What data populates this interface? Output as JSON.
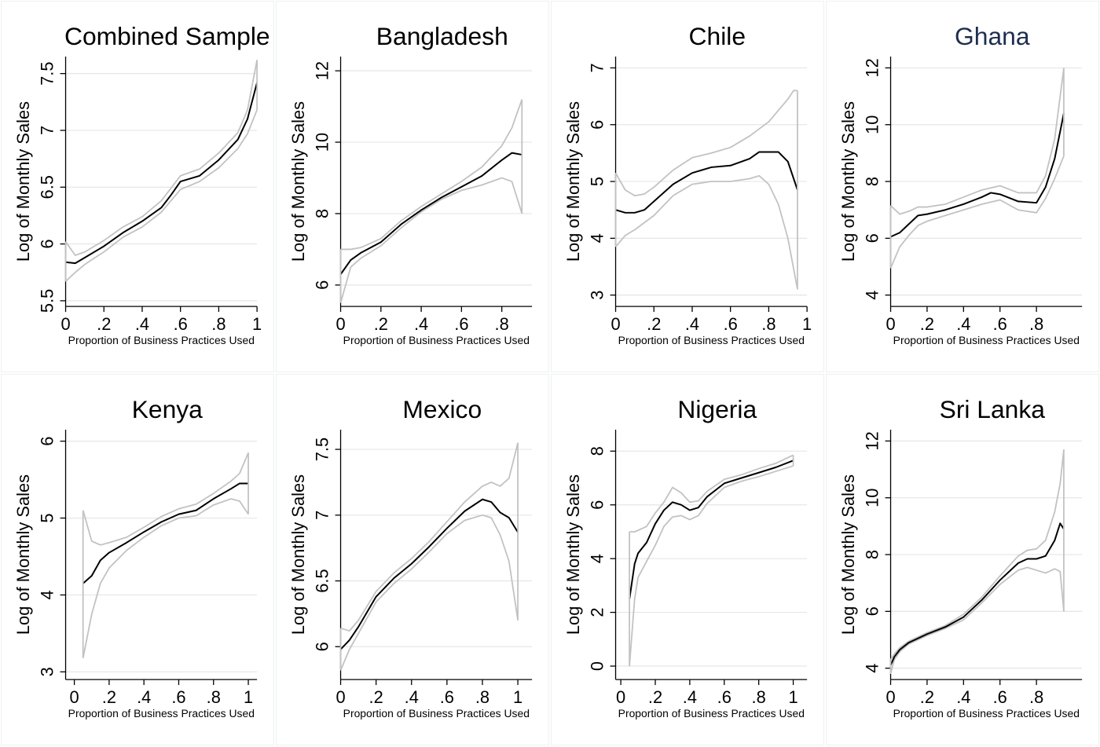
{
  "chart_data": [
    {
      "type": "line",
      "title": "Combined Sample",
      "xlabel": "Proportion of Business Practices Used",
      "ylabel": "Log of Monthly Sales",
      "xlim": [
        0,
        1
      ],
      "ylim": [
        5.45,
        7.65
      ],
      "xticks": [
        0,
        0.2,
        0.4,
        0.6,
        0.8,
        1
      ],
      "xtick_labels": [
        "0",
        ".2",
        ".4",
        ".6",
        ".8",
        "1"
      ],
      "yticks": [
        5.5,
        6,
        6.5,
        7,
        7.5
      ],
      "ytick_labels": [
        "5.5",
        "6",
        "6.5",
        "7",
        "7.5"
      ],
      "grid": true,
      "series": [
        {
          "role": "fit",
          "x": [
            0,
            0.05,
            0.1,
            0.2,
            0.3,
            0.4,
            0.5,
            0.55,
            0.6,
            0.7,
            0.8,
            0.9,
            0.95,
            1.0
          ],
          "y": [
            5.84,
            5.83,
            5.88,
            5.98,
            6.1,
            6.2,
            6.32,
            6.43,
            6.55,
            6.6,
            6.74,
            6.92,
            7.1,
            7.42
          ]
        },
        {
          "role": "ci-upper",
          "x": [
            0,
            0.05,
            0.1,
            0.2,
            0.3,
            0.4,
            0.5,
            0.6,
            0.7,
            0.8,
            0.9,
            0.95,
            1.0
          ],
          "y": [
            6.02,
            5.9,
            5.93,
            6.03,
            6.15,
            6.24,
            6.38,
            6.6,
            6.66,
            6.8,
            6.98,
            7.18,
            7.62
          ]
        },
        {
          "role": "ci-lower",
          "x": [
            0,
            0.05,
            0.1,
            0.2,
            0.3,
            0.4,
            0.5,
            0.6,
            0.7,
            0.8,
            0.9,
            0.95,
            1.0
          ],
          "y": [
            5.67,
            5.75,
            5.82,
            5.93,
            6.06,
            6.15,
            6.28,
            6.48,
            6.55,
            6.67,
            6.84,
            6.97,
            7.18
          ]
        }
      ]
    },
    {
      "type": "line",
      "title": "Bangladesh",
      "xlabel": "Proportion of Business Practices Used",
      "ylabel": "Log of Monthly Sales",
      "xlim": [
        0,
        0.95
      ],
      "ylim": [
        5.4,
        12.4
      ],
      "xticks": [
        0,
        0.2,
        0.4,
        0.6,
        0.8
      ],
      "xtick_labels": [
        "0",
        ".2",
        ".4",
        ".6",
        ".8"
      ],
      "yticks": [
        6,
        8,
        10,
        12
      ],
      "ytick_labels": [
        "6",
        "8",
        "10",
        "12"
      ],
      "grid": true,
      "series": [
        {
          "role": "fit",
          "x": [
            0,
            0.05,
            0.1,
            0.2,
            0.3,
            0.4,
            0.5,
            0.6,
            0.7,
            0.8,
            0.85,
            0.9
          ],
          "y": [
            6.3,
            6.7,
            6.9,
            7.2,
            7.7,
            8.1,
            8.45,
            8.75,
            9.05,
            9.5,
            9.7,
            9.65
          ]
        },
        {
          "role": "ci-upper",
          "x": [
            0,
            0.05,
            0.1,
            0.2,
            0.3,
            0.4,
            0.5,
            0.6,
            0.7,
            0.8,
            0.85,
            0.9
          ],
          "y": [
            7.0,
            7.0,
            7.05,
            7.3,
            7.8,
            8.2,
            8.55,
            8.9,
            9.3,
            9.9,
            10.4,
            11.2
          ]
        },
        {
          "role": "ci-lower",
          "x": [
            0,
            0.05,
            0.1,
            0.2,
            0.3,
            0.4,
            0.5,
            0.6,
            0.7,
            0.8,
            0.85,
            0.9
          ],
          "y": [
            5.5,
            6.5,
            6.75,
            7.1,
            7.6,
            8.05,
            8.4,
            8.65,
            8.8,
            9.0,
            8.9,
            8.0
          ]
        }
      ]
    },
    {
      "type": "line",
      "title": "Chile",
      "xlabel": "Proportion of Business Practices Used",
      "ylabel": "Log of Monthly Sales",
      "xlim": [
        0,
        1
      ],
      "ylim": [
        2.8,
        7.2
      ],
      "xticks": [
        0,
        0.2,
        0.4,
        0.6,
        0.8,
        1
      ],
      "xtick_labels": [
        "0",
        ".2",
        ".4",
        ".6",
        ".8",
        "1"
      ],
      "yticks": [
        3,
        4,
        5,
        6,
        7
      ],
      "ytick_labels": [
        "3",
        "4",
        "5",
        "6",
        "7"
      ],
      "grid": true,
      "series": [
        {
          "role": "fit",
          "x": [
            0,
            0.05,
            0.1,
            0.15,
            0.2,
            0.3,
            0.4,
            0.5,
            0.6,
            0.7,
            0.75,
            0.85,
            0.9,
            0.95
          ],
          "y": [
            4.5,
            4.45,
            4.45,
            4.5,
            4.65,
            4.95,
            5.15,
            5.25,
            5.28,
            5.4,
            5.52,
            5.52,
            5.35,
            4.85
          ]
        },
        {
          "role": "ci-upper",
          "x": [
            0,
            0.05,
            0.1,
            0.15,
            0.2,
            0.3,
            0.4,
            0.5,
            0.6,
            0.7,
            0.8,
            0.9,
            0.93,
            0.95
          ],
          "y": [
            5.15,
            4.85,
            4.75,
            4.78,
            4.9,
            5.2,
            5.42,
            5.5,
            5.6,
            5.8,
            6.05,
            6.45,
            6.6,
            6.6
          ]
        },
        {
          "role": "ci-lower",
          "x": [
            0,
            0.05,
            0.1,
            0.2,
            0.3,
            0.4,
            0.5,
            0.6,
            0.7,
            0.75,
            0.8,
            0.85,
            0.9,
            0.95
          ],
          "y": [
            3.85,
            4.05,
            4.15,
            4.4,
            4.75,
            4.95,
            5.0,
            5.0,
            5.05,
            5.1,
            4.95,
            4.6,
            4.0,
            3.1
          ]
        }
      ]
    },
    {
      "type": "line",
      "title": "Ghana",
      "xlabel": "Proportion of Business Practices Used",
      "ylabel": "Log of Monthly Sales",
      "xlim": [
        0,
        1.05
      ],
      "ylim": [
        3.6,
        12.4
      ],
      "xticks": [
        0,
        0.2,
        0.4,
        0.6,
        0.8
      ],
      "xtick_labels": [
        "0",
        ".2",
        ".4",
        ".6",
        ".8"
      ],
      "yticks": [
        4,
        6,
        8,
        10,
        12
      ],
      "ytick_labels": [
        "4",
        "6",
        "8",
        "10",
        "12"
      ],
      "grid": true,
      "series": [
        {
          "role": "fit",
          "x": [
            0,
            0.05,
            0.1,
            0.15,
            0.2,
            0.3,
            0.4,
            0.5,
            0.55,
            0.6,
            0.7,
            0.8,
            0.85,
            0.9,
            0.95
          ],
          "y": [
            6.05,
            6.2,
            6.5,
            6.8,
            6.85,
            7.0,
            7.2,
            7.45,
            7.6,
            7.55,
            7.3,
            7.25,
            7.8,
            8.8,
            10.4
          ]
        },
        {
          "role": "ci-upper",
          "x": [
            0,
            0.05,
            0.1,
            0.15,
            0.2,
            0.3,
            0.4,
            0.5,
            0.6,
            0.7,
            0.8,
            0.85,
            0.9,
            0.95
          ],
          "y": [
            7.15,
            6.85,
            6.95,
            7.1,
            7.1,
            7.2,
            7.45,
            7.7,
            7.85,
            7.6,
            7.6,
            8.2,
            9.5,
            12.0
          ]
        },
        {
          "role": "ci-lower",
          "x": [
            0,
            0.05,
            0.1,
            0.15,
            0.2,
            0.3,
            0.4,
            0.5,
            0.6,
            0.7,
            0.8,
            0.85,
            0.9,
            0.95
          ],
          "y": [
            4.95,
            5.7,
            6.1,
            6.45,
            6.6,
            6.8,
            7.0,
            7.2,
            7.35,
            7.0,
            6.9,
            7.4,
            8.1,
            8.9
          ]
        }
      ]
    },
    {
      "type": "line",
      "title": "Kenya",
      "xlabel": "Proportion of Business Practices Used",
      "ylabel": "Log of Monthly Sales",
      "xlim": [
        -0.05,
        1.05
      ],
      "ylim": [
        2.9,
        6.15
      ],
      "xticks": [
        0,
        0.2,
        0.4,
        0.6,
        0.8,
        1
      ],
      "xtick_labels": [
        "0",
        ".2",
        ".4",
        ".6",
        ".8",
        "1"
      ],
      "yticks": [
        3,
        4,
        5,
        6
      ],
      "ytick_labels": [
        "3",
        "4",
        "5",
        "6"
      ],
      "grid": true,
      "series": [
        {
          "role": "fit",
          "x": [
            0.05,
            0.1,
            0.15,
            0.2,
            0.3,
            0.4,
            0.5,
            0.6,
            0.7,
            0.8,
            0.9,
            0.95,
            1.0
          ],
          "y": [
            4.15,
            4.25,
            4.45,
            4.55,
            4.68,
            4.82,
            4.95,
            5.05,
            5.1,
            5.25,
            5.38,
            5.45,
            5.45
          ]
        },
        {
          "role": "ci-upper",
          "x": [
            0.05,
            0.1,
            0.15,
            0.2,
            0.3,
            0.4,
            0.5,
            0.6,
            0.7,
            0.8,
            0.9,
            0.95,
            1.0
          ],
          "y": [
            5.1,
            4.7,
            4.65,
            4.68,
            4.75,
            4.88,
            5.02,
            5.12,
            5.18,
            5.32,
            5.48,
            5.58,
            5.85
          ]
        },
        {
          "role": "ci-lower",
          "x": [
            0.05,
            0.1,
            0.15,
            0.2,
            0.3,
            0.4,
            0.5,
            0.6,
            0.7,
            0.8,
            0.9,
            0.95,
            1.0
          ],
          "y": [
            3.18,
            3.75,
            4.15,
            4.35,
            4.58,
            4.75,
            4.9,
            5.0,
            5.03,
            5.17,
            5.25,
            5.22,
            5.05
          ]
        }
      ]
    },
    {
      "type": "line",
      "title": "Mexico",
      "xlabel": "Proportion of Business Practices Used",
      "ylabel": "Log of Monthly Sales",
      "xlim": [
        0,
        1.08
      ],
      "ylim": [
        5.75,
        7.65
      ],
      "xticks": [
        0,
        0.2,
        0.4,
        0.6,
        0.8,
        1
      ],
      "xtick_labels": [
        "0",
        ".2",
        ".4",
        ".6",
        ".8",
        "1"
      ],
      "yticks": [
        6,
        6.5,
        7,
        7.5
      ],
      "ytick_labels": [
        "6",
        "6.5",
        "7",
        "7.5"
      ],
      "grid": true,
      "series": [
        {
          "role": "fit",
          "x": [
            0,
            0.05,
            0.1,
            0.2,
            0.3,
            0.4,
            0.5,
            0.6,
            0.7,
            0.8,
            0.85,
            0.9,
            0.95,
            1.0
          ],
          "y": [
            5.98,
            6.05,
            6.15,
            6.38,
            6.52,
            6.63,
            6.76,
            6.9,
            7.03,
            7.12,
            7.1,
            7.02,
            6.98,
            6.87
          ]
        },
        {
          "role": "ci-upper",
          "x": [
            0,
            0.05,
            0.1,
            0.2,
            0.3,
            0.4,
            0.5,
            0.6,
            0.7,
            0.8,
            0.85,
            0.9,
            0.95,
            1.0
          ],
          "y": [
            6.14,
            6.12,
            6.2,
            6.42,
            6.56,
            6.67,
            6.8,
            6.95,
            7.1,
            7.22,
            7.25,
            7.22,
            7.28,
            7.55
          ]
        },
        {
          "role": "ci-lower",
          "x": [
            0,
            0.05,
            0.1,
            0.2,
            0.3,
            0.4,
            0.5,
            0.6,
            0.7,
            0.8,
            0.85,
            0.9,
            0.95,
            1.0
          ],
          "y": [
            5.82,
            5.98,
            6.1,
            6.34,
            6.48,
            6.59,
            6.72,
            6.86,
            6.96,
            7.0,
            6.98,
            6.85,
            6.65,
            6.2
          ]
        }
      ]
    },
    {
      "type": "line",
      "title": "Nigeria",
      "xlabel": "Proportion of Business Practices Used",
      "ylabel": "Log of Monthly Sales",
      "xlim": [
        -0.03,
        1.08
      ],
      "ylim": [
        -0.5,
        8.8
      ],
      "xticks": [
        0,
        0.2,
        0.4,
        0.6,
        0.8,
        1
      ],
      "xtick_labels": [
        "0",
        ".2",
        ".4",
        ".6",
        ".8",
        "1"
      ],
      "yticks": [
        0,
        2,
        4,
        6,
        8
      ],
      "ytick_labels": [
        "0",
        "2",
        "4",
        "6",
        "8"
      ],
      "grid": true,
      "series": [
        {
          "role": "fit",
          "x": [
            0.05,
            0.08,
            0.1,
            0.15,
            0.2,
            0.25,
            0.3,
            0.35,
            0.4,
            0.45,
            0.5,
            0.6,
            0.7,
            0.8,
            0.9,
            1.0
          ],
          "y": [
            2.5,
            3.8,
            4.2,
            4.6,
            5.3,
            5.8,
            6.1,
            6.0,
            5.8,
            5.9,
            6.3,
            6.8,
            7.0,
            7.2,
            7.4,
            7.65
          ]
        },
        {
          "role": "ci-upper",
          "x": [
            0.05,
            0.08,
            0.1,
            0.15,
            0.2,
            0.25,
            0.3,
            0.35,
            0.4,
            0.45,
            0.5,
            0.6,
            0.7,
            0.8,
            0.9,
            1.0
          ],
          "y": [
            5.0,
            5.0,
            5.05,
            5.2,
            5.7,
            6.1,
            6.65,
            6.45,
            6.1,
            6.15,
            6.5,
            6.95,
            7.12,
            7.35,
            7.55,
            7.85
          ]
        },
        {
          "role": "ci-lower",
          "x": [
            0.05,
            0.08,
            0.1,
            0.15,
            0.2,
            0.25,
            0.3,
            0.35,
            0.4,
            0.45,
            0.5,
            0.6,
            0.7,
            0.8,
            0.9,
            1.0
          ],
          "y": [
            0.0,
            2.5,
            3.3,
            3.9,
            4.5,
            5.2,
            5.55,
            5.6,
            5.45,
            5.6,
            6.05,
            6.65,
            6.88,
            7.05,
            7.25,
            7.45
          ]
        }
      ]
    },
    {
      "type": "line",
      "title": "Sri Lanka",
      "xlabel": "Proportion of Business Practices Used",
      "ylabel": "Log of Monthly Sales",
      "xlim": [
        0,
        1.05
      ],
      "ylim": [
        3.6,
        12.4
      ],
      "xticks": [
        0,
        0.2,
        0.4,
        0.6,
        0.8
      ],
      "xtick_labels": [
        "0",
        ".2",
        ".4",
        ".6",
        ".8"
      ],
      "yticks": [
        4,
        6,
        8,
        10,
        12
      ],
      "ytick_labels": [
        "4",
        "6",
        "8",
        "10",
        "12"
      ],
      "grid": true,
      "series": [
        {
          "role": "fit",
          "x": [
            0,
            0.02,
            0.05,
            0.1,
            0.2,
            0.3,
            0.4,
            0.5,
            0.6,
            0.7,
            0.75,
            0.8,
            0.85,
            0.9,
            0.93,
            0.95
          ],
          "y": [
            4.1,
            4.4,
            4.65,
            4.9,
            5.2,
            5.45,
            5.8,
            6.4,
            7.1,
            7.7,
            7.85,
            7.85,
            7.95,
            8.5,
            9.1,
            8.9
          ]
        },
        {
          "role": "ci-upper",
          "x": [
            0,
            0.02,
            0.05,
            0.1,
            0.2,
            0.3,
            0.4,
            0.5,
            0.6,
            0.7,
            0.75,
            0.8,
            0.85,
            0.9,
            0.93,
            0.95
          ],
          "y": [
            4.3,
            4.5,
            4.72,
            4.95,
            5.25,
            5.5,
            5.9,
            6.5,
            7.25,
            7.95,
            8.15,
            8.2,
            8.5,
            9.5,
            10.5,
            11.7
          ]
        },
        {
          "role": "ci-lower",
          "x": [
            0,
            0.02,
            0.05,
            0.1,
            0.2,
            0.3,
            0.4,
            0.5,
            0.6,
            0.7,
            0.75,
            0.8,
            0.85,
            0.9,
            0.93,
            0.95
          ],
          "y": [
            3.8,
            4.3,
            4.58,
            4.85,
            5.15,
            5.4,
            5.7,
            6.3,
            6.95,
            7.45,
            7.55,
            7.45,
            7.35,
            7.5,
            7.4,
            6.0
          ]
        }
      ]
    }
  ],
  "colors": {
    "fit": "#000000",
    "ci": "#c2c2c2",
    "grid": "#e6e6e6",
    "axis": "#000000",
    "accent_title": "#1e2d4f",
    "panel_border": "#eef0f2"
  }
}
